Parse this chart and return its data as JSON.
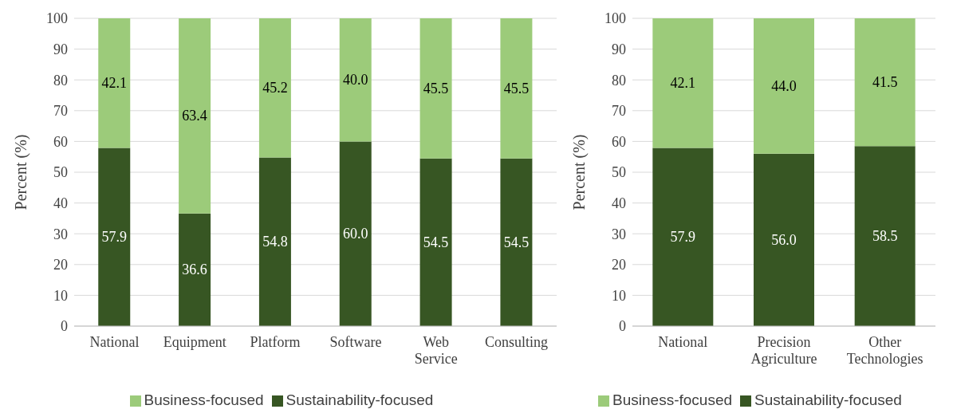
{
  "chart_data": [
    {
      "type": "bar",
      "stacked": true,
      "ylabel": "Percent (%)",
      "categories": [
        "National",
        "Equipment",
        "Platform",
        "Software",
        "Web Service",
        "Consulting"
      ],
      "ylim": [
        0,
        100
      ],
      "yticks": [
        0,
        10,
        20,
        30,
        40,
        50,
        60,
        70,
        80,
        90,
        100
      ],
      "grid": "y",
      "legend": "bottom",
      "series": [
        {
          "name": "Sustainability-focused",
          "color": "#375623",
          "values": [
            57.9,
            36.6,
            54.8,
            60.0,
            54.5,
            54.5
          ],
          "value_labels": [
            "57.9",
            "36.6",
            "54.8",
            "60.0",
            "54.5",
            "54.5"
          ]
        },
        {
          "name": "Business-focused",
          "color": "#9ccb7a",
          "values": [
            42.1,
            63.4,
            45.2,
            40.0,
            45.5,
            45.5
          ],
          "value_labels": [
            "42.1",
            "63.4",
            "45.2",
            "40.0",
            "45.5",
            "45.5"
          ]
        }
      ]
    },
    {
      "type": "bar",
      "stacked": true,
      "ylabel": "Percent (%)",
      "categories": [
        "National",
        "Precision Agriculture",
        "Other Technologies"
      ],
      "ylim": [
        0,
        100
      ],
      "yticks": [
        0,
        10,
        20,
        30,
        40,
        50,
        60,
        70,
        80,
        90,
        100
      ],
      "grid": "y",
      "legend": "bottom",
      "series": [
        {
          "name": "Sustainability-focused",
          "color": "#375623",
          "values": [
            57.9,
            56.0,
            58.5
          ],
          "value_labels": [
            "57.9",
            "56.0",
            "58.5"
          ]
        },
        {
          "name": "Business-focused",
          "color": "#9ccb7a",
          "values": [
            42.1,
            44.0,
            41.5
          ],
          "value_labels": [
            "42.1",
            "44.0",
            "41.5"
          ]
        }
      ]
    }
  ]
}
